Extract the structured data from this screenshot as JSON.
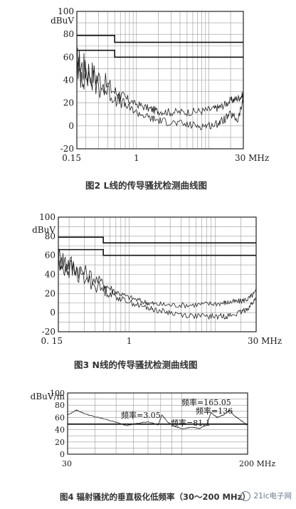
{
  "chart_data": [
    {
      "type": "line",
      "title": "图2 L线的传导骚扰检测曲线图",
      "ylabel": "dBuV",
      "xlim": [
        0.15,
        30
      ],
      "ylim": [
        -20,
        100
      ],
      "x_scale": "log",
      "grid": true,
      "x_ticks": [
        "0.15",
        "1",
        "30 MHz"
      ],
      "y_ticks": [
        "100",
        "80",
        "60",
        "40",
        "20",
        "0",
        "-20"
      ],
      "limit_lines": [
        {
          "x": [
            0.15,
            0.5,
            0.5,
            30
          ],
          "y": [
            79,
            79,
            73,
            73
          ]
        },
        {
          "x": [
            0.15,
            0.5,
            0.5,
            30
          ],
          "y": [
            66,
            66,
            60,
            60
          ]
        }
      ],
      "series": [
        {
          "x": [
            0.15,
            0.2,
            0.3,
            0.5,
            0.7,
            1,
            1.5,
            2,
            3,
            5,
            8,
            12,
            15,
            20,
            25,
            30
          ],
          "y": [
            55,
            50,
            42,
            30,
            24,
            19,
            15,
            13,
            12,
            12,
            13,
            15,
            17,
            22,
            24,
            27
          ]
        },
        {
          "x": [
            0.15,
            0.2,
            0.3,
            0.5,
            0.7,
            1,
            1.5,
            2,
            3,
            5,
            8,
            12,
            15,
            20,
            25,
            30
          ],
          "y": [
            48,
            44,
            35,
            25,
            18,
            12,
            7,
            5,
            3,
            1,
            0,
            1,
            4,
            10,
            5,
            22
          ]
        }
      ]
    },
    {
      "type": "line",
      "title": "图3 N线的传导骚扰检测曲线图",
      "ylabel": "dBuV",
      "xlim": [
        0.15,
        30
      ],
      "ylim": [
        -20,
        100
      ],
      "x_scale": "log",
      "grid": true,
      "x_ticks": [
        "0. 15",
        "1",
        "30 MHz"
      ],
      "y_ticks": [
        "100",
        "80",
        "60",
        "40",
        "20",
        "0",
        "-20"
      ],
      "limit_lines": [
        {
          "x": [
            0.15,
            0.5,
            0.5,
            30
          ],
          "y": [
            79,
            79,
            73,
            73
          ]
        },
        {
          "x": [
            0.15,
            0.5,
            0.5,
            30
          ],
          "y": [
            66,
            66,
            60,
            60
          ]
        }
      ],
      "series": [
        {
          "x": [
            0.15,
            0.2,
            0.3,
            0.5,
            0.7,
            1,
            1.5,
            2,
            3,
            5,
            8,
            12,
            15,
            20,
            25,
            30
          ],
          "y": [
            58,
            52,
            42,
            30,
            22,
            16,
            11,
            9,
            8,
            8,
            9,
            10,
            11,
            12,
            15,
            22
          ]
        },
        {
          "x": [
            0.15,
            0.2,
            0.3,
            0.5,
            0.7,
            1,
            1.5,
            2,
            3,
            5,
            8,
            12,
            15,
            20,
            25,
            30
          ],
          "y": [
            50,
            46,
            36,
            24,
            17,
            11,
            6,
            3,
            0,
            -3,
            -4,
            -4,
            -3,
            0,
            6,
            15
          ]
        }
      ]
    },
    {
      "type": "line",
      "title": "图4  辐射骚扰的垂直极化低频率（30～200 MHz）",
      "ylabel": "dBuV/m",
      "xlim": [
        30,
        200
      ],
      "ylim": [
        0,
        100
      ],
      "x_scale": "log",
      "grid": true,
      "x_ticks": [
        "30",
        "200 MHz"
      ],
      "y_ticks": [
        "100",
        "80",
        "60",
        "40",
        "20",
        "0"
      ],
      "limit_lines": [
        {
          "x": [
            30,
            200
          ],
          "y": [
            49,
            49
          ]
        }
      ],
      "annotations": [
        "频率=3.05",
        "频率=81.1",
        "频率=165.05",
        "频率=136"
      ],
      "series": [
        {
          "x": [
            30,
            33,
            36,
            40,
            45,
            50,
            56,
            62,
            70,
            78,
            81,
            86,
            92,
            100,
            110,
            120,
            130,
            136,
            145,
            155,
            165,
            175,
            185,
            200
          ],
          "y": [
            64,
            72,
            66,
            61,
            57,
            52,
            47,
            50,
            53,
            48,
            64,
            53,
            46,
            41,
            44,
            42,
            48,
            68,
            60,
            64,
            72,
            62,
            56,
            47
          ]
        }
      ]
    }
  ],
  "figures": {
    "fig2": {
      "caption": "图2 L线的传导骚扰检测曲线图"
    },
    "fig3": {
      "caption": "图3 N线的传导骚扰检测曲线图"
    },
    "fig4": {
      "caption": "图4  辐射骚扰的垂直极化低频率（30～200 MHz）"
    }
  },
  "watermark": {
    "text": "21ic电子网"
  }
}
